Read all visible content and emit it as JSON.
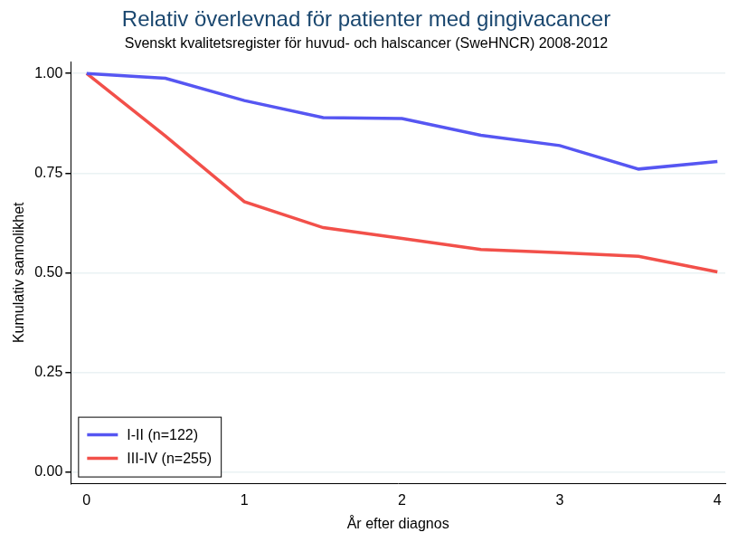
{
  "chart_data": {
    "type": "line",
    "title": "Relativ överlevnad för patienter med gingivacancer",
    "subtitle": "Svenskt kvalitetsregister för huvud- och halscancer (SweHNCR) 2008-2012",
    "x_label": "År efter diagnos",
    "y_label": "Kumulativ sannolikhet",
    "x": [
      0,
      0.5,
      1,
      1.5,
      2,
      2.5,
      3,
      3.5,
      4
    ],
    "series": [
      {
        "name": "I-II (n=122)",
        "color": "#5656f2",
        "values": [
          1.0,
          0.988,
          0.932,
          0.889,
          0.887,
          0.845,
          0.819,
          0.76,
          0.779
        ]
      },
      {
        "name": "III-IV (n=255)",
        "color": "#f2504a",
        "values": [
          1.0,
          0.843,
          0.678,
          0.613,
          0.586,
          0.558,
          0.55,
          0.541,
          0.502
        ]
      }
    ],
    "xlim": [
      -0.1,
      4.05
    ],
    "ylim": [
      -0.03,
      1.03
    ],
    "xticks": [
      0,
      1,
      2,
      3,
      4
    ],
    "yticks": [
      {
        "value": 0,
        "label": "0.00"
      },
      {
        "value": 0.25,
        "label": "0.25"
      },
      {
        "value": 0.5,
        "label": "0.50"
      },
      {
        "value": 0.75,
        "label": "0.75"
      },
      {
        "value": 1,
        "label": "1.00"
      }
    ],
    "grid": true,
    "legend": "lower left"
  }
}
